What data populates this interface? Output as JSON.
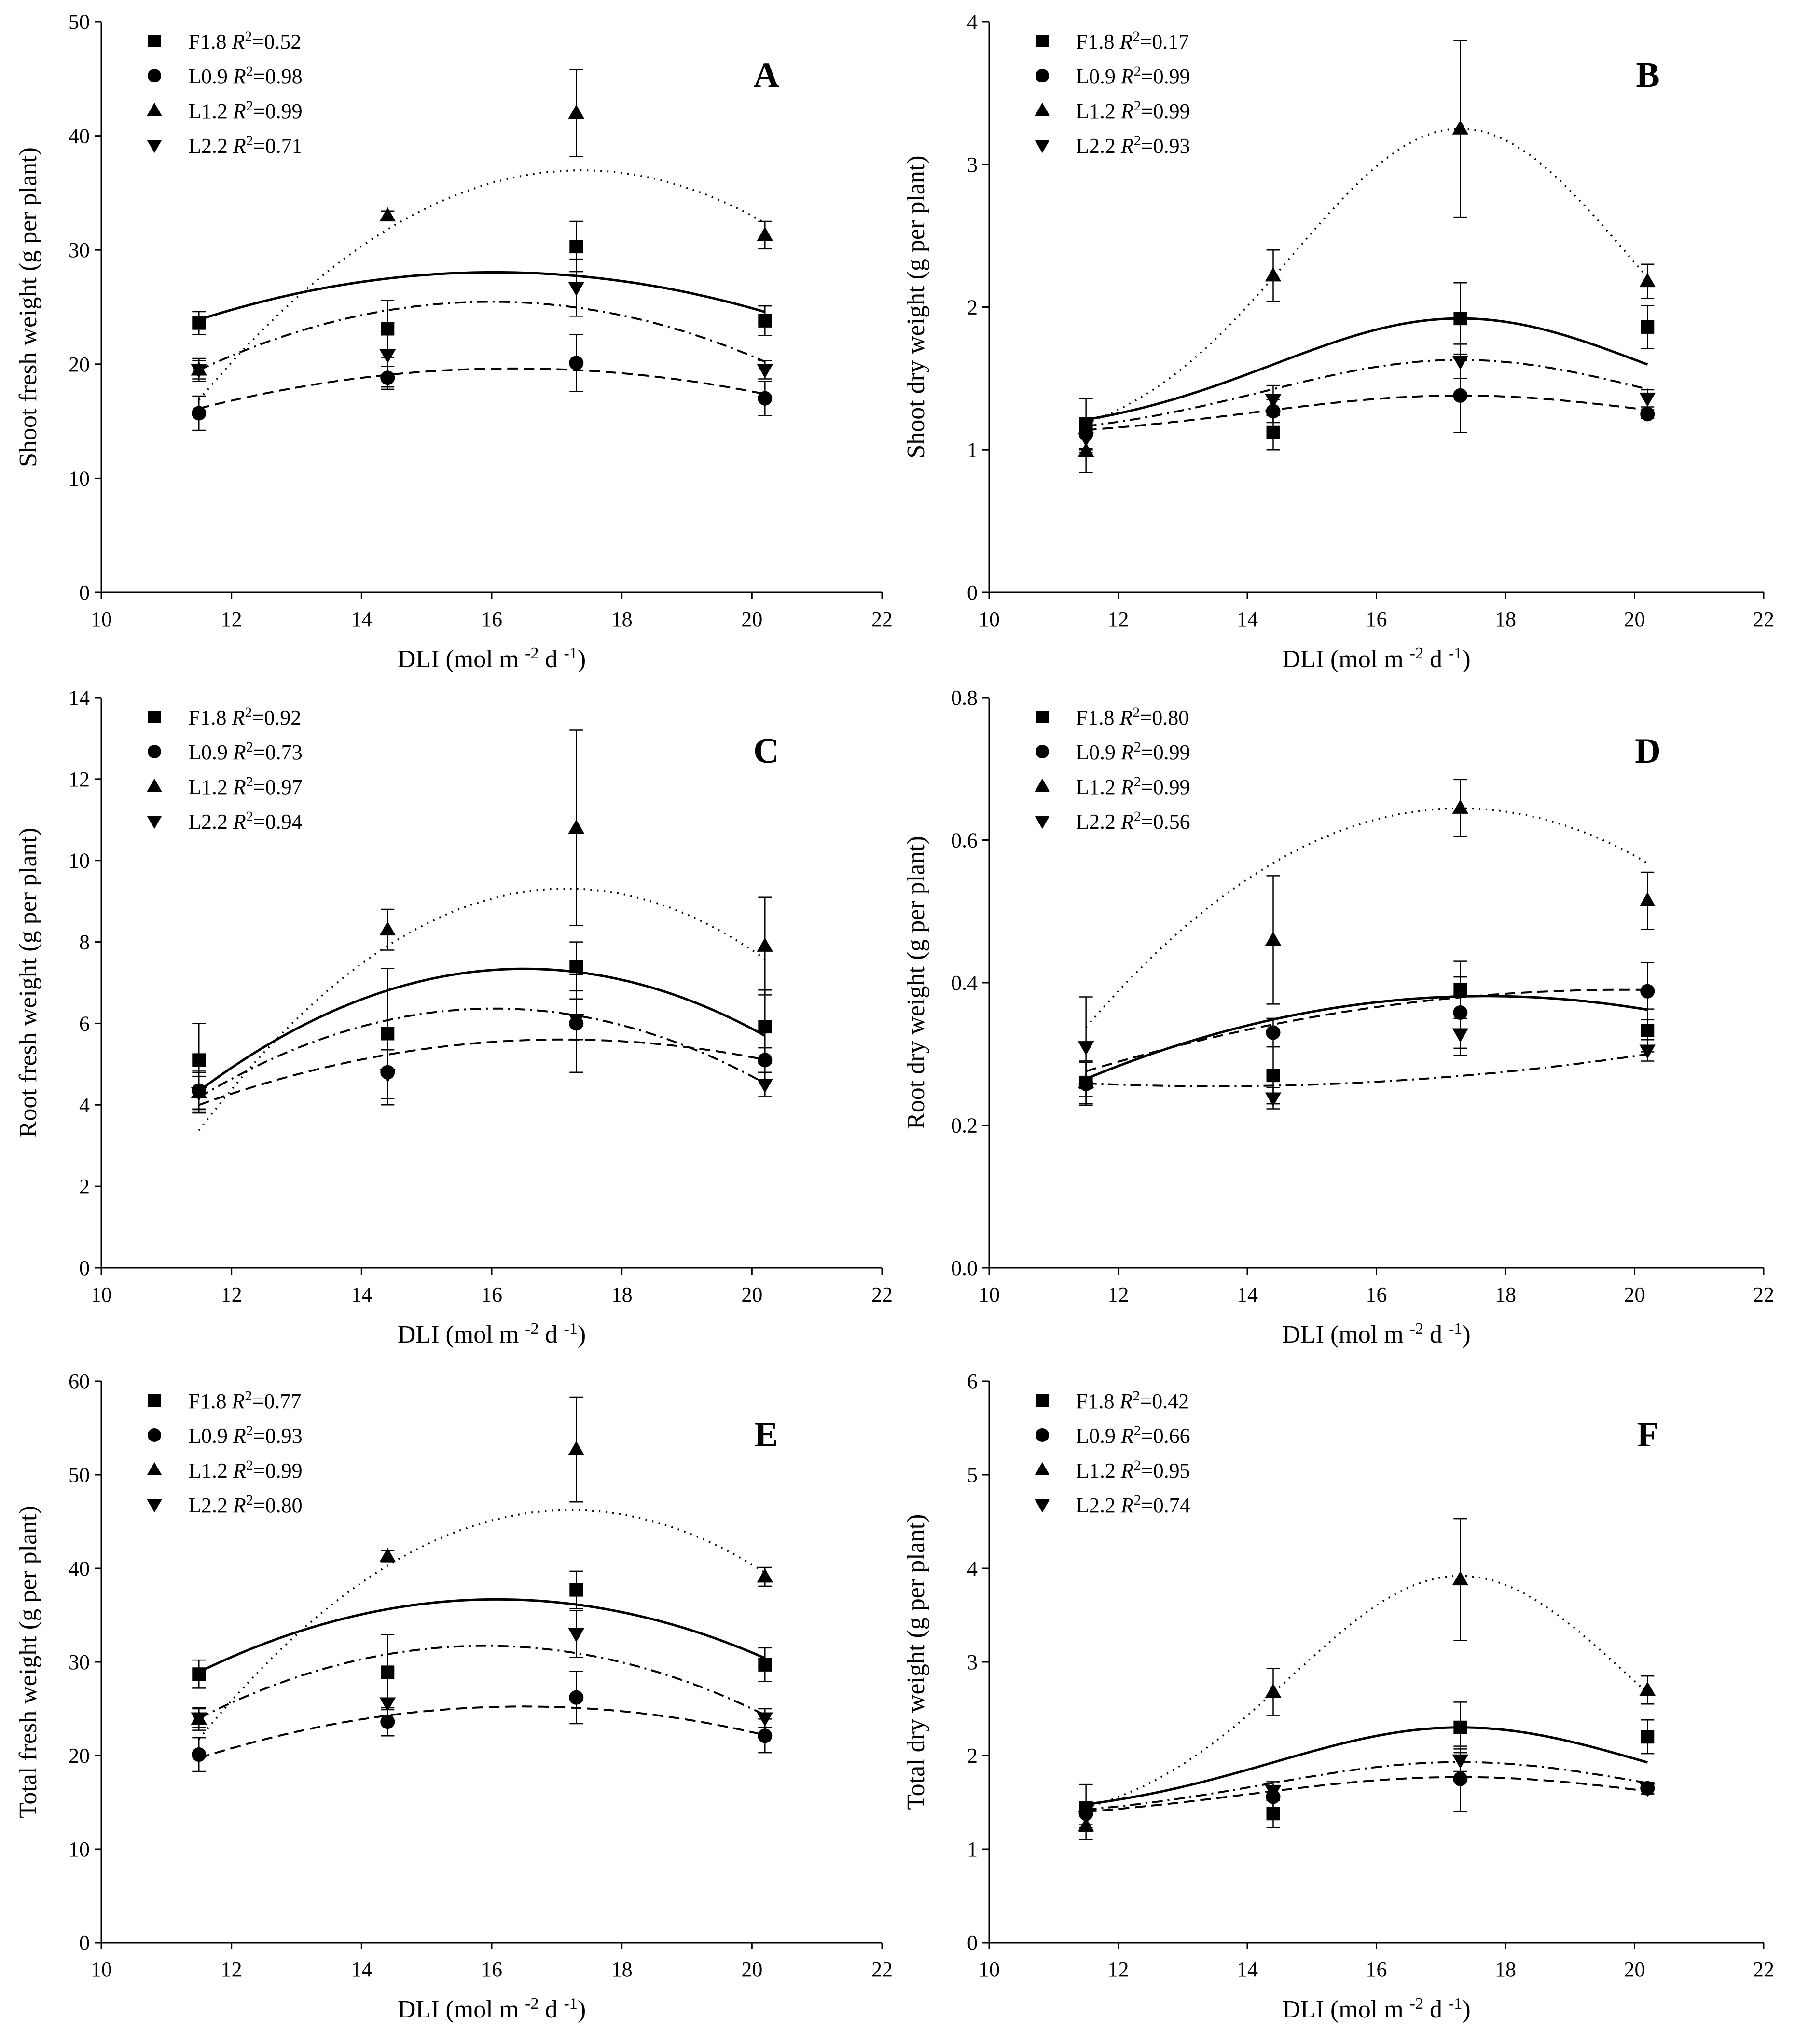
{
  "chart_data": [
    {
      "type": "scatter",
      "panel_label": "A",
      "xlabel": "DLI (mol m-2 d-1)",
      "ylabel": "Shoot fresh weight (g per plant)",
      "xlim": [
        10,
        22
      ],
      "ylim": [
        0,
        50
      ],
      "xticks": [
        10,
        12,
        14,
        16,
        18,
        20,
        22
      ],
      "yticks": [
        0,
        10,
        20,
        30,
        40,
        50
      ],
      "x": [
        11.5,
        14.4,
        17.3,
        20.2
      ],
      "series": [
        {
          "name": "F1.8",
          "r2": "0.52",
          "marker": "square",
          "line": "solid",
          "values": [
            23.6,
            23.1,
            30.3,
            23.8
          ],
          "errors": [
            1.0,
            2.5,
            2.2,
            1.3
          ],
          "fit": [
            -0.201,
            6.45,
            -23.7
          ]
        },
        {
          "name": "L0.9",
          "r2": "0.98",
          "marker": "circle",
          "line": "dashed",
          "values": [
            15.7,
            18.8,
            20.1,
            17.0
          ],
          "errors": [
            1.5,
            1.0,
            2.5,
            1.5
          ],
          "fit": [
            -0.15,
            4.9,
            -20.4
          ]
        },
        {
          "name": "L1.2",
          "r2": "0.99",
          "marker": "triangle-up",
          "line": "dotted",
          "values": [
            19.5,
            33.0,
            42.0,
            31.3
          ],
          "errors": [
            1.0,
            0.4,
            3.8,
            1.2
          ],
          "fit": [
            -0.581,
            20.2,
            -138.6
          ]
        },
        {
          "name": "L2.2",
          "r2": "0.71",
          "marker": "triangle-down",
          "line": "dashdot",
          "values": [
            19.5,
            20.8,
            26.7,
            19.5
          ],
          "errors": [
            0.8,
            2.8,
            2.5,
            0.8
          ],
          "fit": [
            -0.297,
            9.5,
            -50.5
          ]
        }
      ]
    },
    {
      "type": "scatter",
      "panel_label": "B",
      "xlabel": "DLI (mol m-2 d-1)",
      "ylabel": "Shoot dry weight (g per plant)",
      "xlim": [
        10,
        22
      ],
      "ylim": [
        0,
        4
      ],
      "xticks": [
        10,
        12,
        14,
        16,
        18,
        20,
        22
      ],
      "yticks": [
        0,
        1,
        2,
        3,
        4
      ],
      "x": [
        11.5,
        14.4,
        17.3,
        20.2
      ],
      "series": [
        {
          "name": "F1.8",
          "r2": "0.17",
          "marker": "square",
          "line": "solid",
          "values": [
            1.18,
            1.12,
            1.92,
            1.86
          ],
          "errors": [
            0.18,
            0.12,
            0.25,
            0.15
          ],
          "fit": [
            1.1,
            0.82,
            17.3,
            2.9
          ]
        },
        {
          "name": "L0.9",
          "r2": "0.99",
          "marker": "circle",
          "line": "dashed",
          "values": [
            1.11,
            1.27,
            1.38,
            1.25
          ],
          "errors": [
            0.1,
            0.08,
            0.26,
            0.03
          ],
          "fit": [
            1.08,
            0.3,
            17.3,
            3.2
          ]
        },
        {
          "name": "L1.2",
          "r2": "0.99",
          "marker": "triangle-up",
          "line": "dotted",
          "values": [
            0.99,
            2.22,
            3.25,
            2.18
          ],
          "errors": [
            0.15,
            0.18,
            0.62,
            0.12
          ],
          "fit": [
            1.0,
            2.25,
            17.3,
            2.6
          ]
        },
        {
          "name": "L2.2",
          "r2": "0.93",
          "marker": "triangle-down",
          "line": "dashdot",
          "values": [
            1.08,
            1.35,
            1.62,
            1.36
          ],
          "errors": [
            0.1,
            0.1,
            0.12,
            0.06
          ],
          "fit": [
            1.08,
            0.55,
            17.3,
            3.0
          ]
        }
      ]
    },
    {
      "type": "scatter",
      "panel_label": "C",
      "xlabel": "DLI (mol m-2 d-1)",
      "ylabel": "Root fresh weight (g per plant)",
      "xlim": [
        10,
        22
      ],
      "ylim": [
        0,
        14
      ],
      "xticks": [
        10,
        12,
        14,
        16,
        18,
        20,
        22
      ],
      "yticks": [
        0,
        2,
        4,
        6,
        8,
        10,
        12,
        14
      ],
      "x": [
        11.5,
        14.4,
        17.3,
        20.2
      ],
      "series": [
        {
          "name": "F1.8",
          "r2": "0.92",
          "marker": "square",
          "line": "solid",
          "values": [
            5.1,
            5.75,
            7.4,
            5.92
          ],
          "errors": [
            0.9,
            1.6,
            0.6,
            0.9
          ],
          "fit": [
            -0.12,
            3.96,
            -25.33
          ]
        },
        {
          "name": "L0.9",
          "r2": "0.73",
          "marker": "circle",
          "line": "dashed",
          "values": [
            4.35,
            4.8,
            6.0,
            5.1
          ],
          "errors": [
            0.5,
            0.8,
            1.2,
            0.3
          ],
          "fit": [
            -0.0514,
            1.757,
            -9.41
          ]
        },
        {
          "name": "L1.2",
          "r2": "0.97",
          "marker": "triangle-up",
          "line": "dotted",
          "values": [
            4.3,
            8.3,
            10.8,
            7.9
          ],
          "errors": [
            0.5,
            0.5,
            2.4,
            1.2
          ],
          "fit": [
            -0.186,
            6.38,
            -45.4
          ]
        },
        {
          "name": "L2.2",
          "r2": "0.94",
          "marker": "triangle-down",
          "line": "dashdot",
          "values": [
            4.3,
            4.75,
            6.1,
            4.5
          ],
          "errors": [
            0.4,
            0.6,
            0.5,
            0.3
          ],
          "fit": [
            -0.106,
            3.4,
            -20.9
          ]
        }
      ]
    },
    {
      "type": "scatter",
      "panel_label": "D",
      "xlabel": "DLI (mol m-2 d-1)",
      "ylabel": "Root dry weight (g per plant)",
      "xlim": [
        10,
        22
      ],
      "ylim": [
        0.0,
        0.8
      ],
      "xticks": [
        10,
        12,
        14,
        16,
        18,
        20,
        22
      ],
      "yticks": [
        "0.0",
        "0.2",
        "0.4",
        "0.6",
        "0.8"
      ],
      "x": [
        11.5,
        14.4,
        17.3,
        20.2
      ],
      "series": [
        {
          "name": "F1.8",
          "r2": "0.80",
          "marker": "square",
          "line": "solid",
          "values": [
            0.26,
            0.27,
            0.39,
            0.333
          ],
          "errors": [
            0.03,
            0.04,
            0.04,
            0.03
          ],
          "fit": [
            -0.00303,
            0.1072,
            -0.567
          ]
        },
        {
          "name": "L0.9",
          "r2": "0.99",
          "marker": "circle",
          "line": "dashed",
          "values": [
            0.258,
            0.33,
            0.358,
            0.388
          ],
          "errors": [
            0.03,
            0.02,
            0.05,
            0.04
          ],
          "fit": [
            -0.00164,
            0.0651,
            -0.256
          ]
        },
        {
          "name": "L1.2",
          "r2": "0.99",
          "marker": "triangle-up",
          "line": "dotted",
          "values": [
            0.26,
            0.46,
            0.645,
            0.515
          ],
          "errors": [
            0.03,
            0.09,
            0.04,
            0.04
          ],
          "fit": [
            -0.00913,
            0.3159,
            -2.088
          ]
        },
        {
          "name": "L2.2",
          "r2": "0.56",
          "marker": "triangle-down",
          "line": "dashdot",
          "values": [
            0.31,
            0.238,
            0.328,
            0.305
          ],
          "errors": [
            0.07,
            0.015,
            0.03,
            0.015
          ],
          "fit": [
            0.001,
            -0.027,
            0.437
          ]
        }
      ]
    },
    {
      "type": "scatter",
      "panel_label": "E",
      "xlabel": "DLI (mol m-2 d-1)",
      "ylabel": "Total fresh weight (g per plant)",
      "xlim": [
        10,
        22
      ],
      "ylim": [
        0,
        60
      ],
      "xticks": [
        10,
        12,
        14,
        16,
        18,
        20,
        22
      ],
      "yticks": [
        0,
        10,
        20,
        30,
        40,
        50,
        60
      ],
      "x": [
        11.5,
        14.4,
        17.3,
        20.2
      ],
      "series": [
        {
          "name": "F1.8",
          "r2": "0.77",
          "marker": "square",
          "line": "solid",
          "values": [
            28.7,
            28.9,
            37.7,
            29.7
          ],
          "errors": [
            1.5,
            4.0,
            2.0,
            1.8
          ],
          "fit": [
            -0.37,
            11.9,
            -59.0
          ]
        },
        {
          "name": "L0.9",
          "r2": "0.93",
          "marker": "circle",
          "line": "dashed",
          "values": [
            20.1,
            23.6,
            26.2,
            22.1
          ],
          "errors": [
            1.8,
            1.5,
            2.8,
            1.8
          ],
          "fit": [
            -0.222,
            7.32,
            -35.1
          ]
        },
        {
          "name": "L1.2",
          "r2": "0.99",
          "marker": "triangle-up",
          "line": "dotted",
          "values": [
            23.9,
            41.3,
            52.7,
            39.1
          ],
          "errors": [
            1.2,
            0.6,
            5.6,
            1.0
          ],
          "fit": [
            -0.75,
            25.82,
            -176.0
          ]
        },
        {
          "name": "L2.2",
          "r2": "0.80",
          "marker": "triangle-down",
          "line": "dashdot",
          "values": [
            24.0,
            25.6,
            33.0,
            24.0
          ],
          "errors": [
            1.0,
            3.5,
            2.5,
            1.0
          ],
          "fit": [
            -0.4,
            12.72,
            -69.4
          ]
        }
      ]
    },
    {
      "type": "scatter",
      "panel_label": "F",
      "xlabel": "DLI (mol m-2 d-1)",
      "ylabel": "Total dry weight (g per plant)",
      "xlim": [
        10,
        22
      ],
      "ylim": [
        0,
        6
      ],
      "xticks": [
        10,
        12,
        14,
        16,
        18,
        20,
        22
      ],
      "yticks": [
        0,
        1,
        2,
        3,
        4,
        5,
        6
      ],
      "x": [
        11.5,
        14.4,
        17.3,
        20.2
      ],
      "series": [
        {
          "name": "F1.8",
          "r2": "0.42",
          "marker": "square",
          "line": "solid",
          "values": [
            1.44,
            1.38,
            2.3,
            2.2
          ],
          "errors": [
            0.25,
            0.15,
            0.27,
            0.18
          ],
          "fit": [
            1.35,
            0.95,
            17.3,
            2.9
          ]
        },
        {
          "name": "L0.9",
          "r2": "0.66",
          "marker": "circle",
          "line": "dashed",
          "values": [
            1.38,
            1.56,
            1.75,
            1.65
          ],
          "errors": [
            0.12,
            0.12,
            0.35,
            0.06
          ],
          "fit": [
            1.3,
            0.47,
            17.3,
            3.3
          ]
        },
        {
          "name": "L1.2",
          "r2": "0.95",
          "marker": "triangle-up",
          "line": "dotted",
          "values": [
            1.25,
            2.68,
            3.88,
            2.7
          ],
          "errors": [
            0.15,
            0.25,
            0.65,
            0.15
          ],
          "fit": [
            1.22,
            2.7,
            17.3,
            2.6
          ]
        },
        {
          "name": "L2.2",
          "r2": "0.74",
          "marker": "triangle-down",
          "line": "dashdot",
          "values": [
            1.35,
            1.62,
            1.95,
            1.65
          ],
          "errors": [
            0.12,
            0.1,
            0.12,
            0.06
          ],
          "fit": [
            1.33,
            0.6,
            17.3,
            3.0
          ]
        }
      ]
    }
  ]
}
